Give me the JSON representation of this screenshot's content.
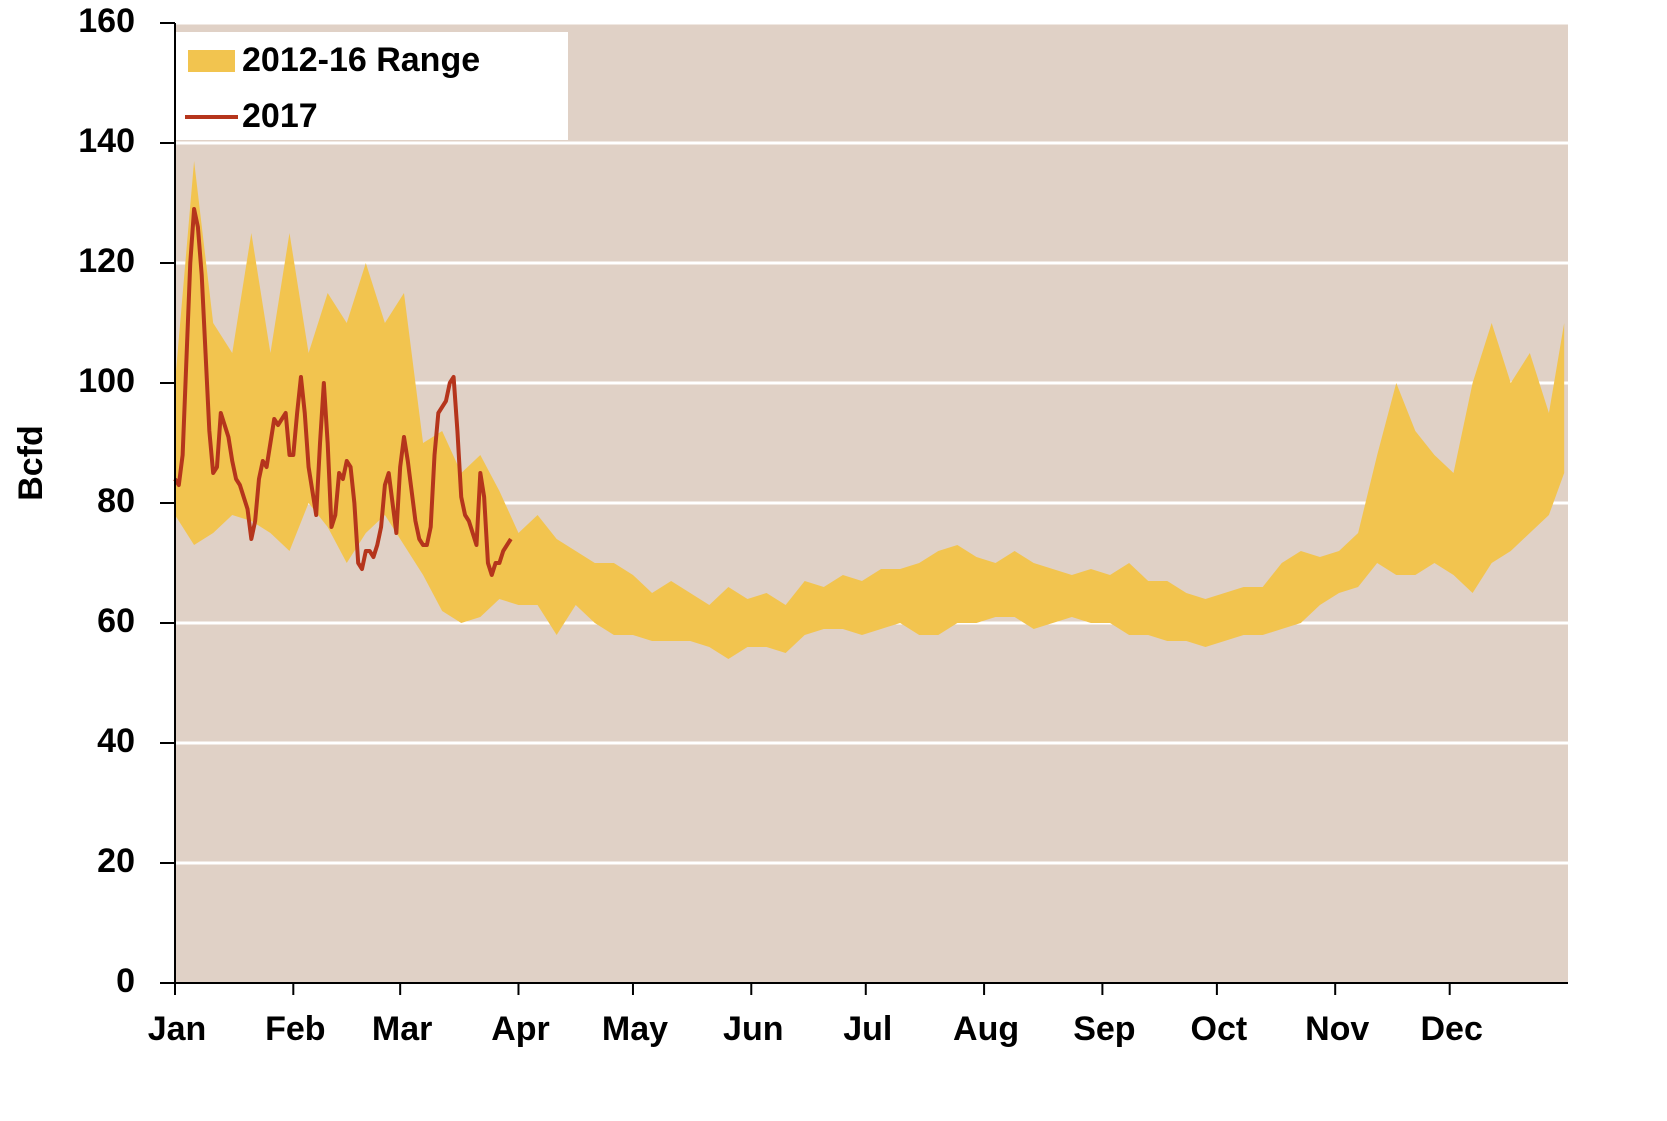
{
  "chart_data": {
    "type": "line",
    "y_label": "Bcfd",
    "xlim": [
      0,
      365
    ],
    "xticks": [
      {
        "value": 0,
        "label": "Jan"
      },
      {
        "value": 31,
        "label": "Feb"
      },
      {
        "value": 59,
        "label": "Mar"
      },
      {
        "value": 90,
        "label": "Apr"
      },
      {
        "value": 120,
        "label": "May"
      },
      {
        "value": 151,
        "label": "Jun"
      },
      {
        "value": 181,
        "label": "Jul"
      },
      {
        "value": 212,
        "label": "Aug"
      },
      {
        "value": 243,
        "label": "Sep"
      },
      {
        "value": 273,
        "label": "Oct"
      },
      {
        "value": 304,
        "label": "Nov"
      },
      {
        "value": 334,
        "label": "Dec"
      }
    ],
    "ylim": [
      0,
      160
    ],
    "yticks": [
      0,
      20,
      40,
      60,
      80,
      100,
      120,
      140,
      160
    ],
    "grid": true,
    "legend": "top-left",
    "background": "#e0d1c6",
    "series": [
      {
        "name": "2012-16 Range",
        "kind": "range",
        "color": "#f2c44f",
        "x": [
          0,
          5,
          10,
          15,
          20,
          25,
          30,
          35,
          40,
          45,
          50,
          55,
          60,
          65,
          70,
          75,
          80,
          85,
          90,
          95,
          100,
          105,
          110,
          115,
          120,
          125,
          130,
          135,
          140,
          145,
          150,
          155,
          160,
          165,
          170,
          175,
          180,
          185,
          190,
          195,
          200,
          205,
          210,
          215,
          220,
          225,
          230,
          235,
          240,
          245,
          250,
          255,
          260,
          265,
          270,
          275,
          280,
          285,
          290,
          295,
          300,
          305,
          310,
          315,
          320,
          325,
          330,
          335,
          340,
          345,
          350,
          355,
          360,
          364
        ],
        "low": [
          78,
          73,
          75,
          78,
          77,
          75,
          72,
          80,
          76,
          70,
          75,
          78,
          73,
          68,
          62,
          60,
          61,
          64,
          63,
          63,
          58,
          63,
          60,
          58,
          58,
          57,
          57,
          57,
          56,
          54,
          56,
          56,
          55,
          58,
          59,
          59,
          58,
          59,
          60,
          58,
          58,
          60,
          60,
          61,
          61,
          59,
          60,
          61,
          60,
          60,
          58,
          58,
          57,
          57,
          56,
          57,
          58,
          58,
          59,
          60,
          63,
          65,
          66,
          70,
          68,
          68,
          70,
          68,
          65,
          70,
          72,
          75,
          78,
          85
        ],
        "high": [
          100,
          137,
          110,
          105,
          125,
          105,
          125,
          105,
          115,
          110,
          120,
          110,
          115,
          90,
          92,
          85,
          88,
          82,
          75,
          78,
          74,
          72,
          70,
          70,
          68,
          65,
          67,
          65,
          63,
          66,
          64,
          65,
          63,
          67,
          66,
          68,
          67,
          69,
          69,
          70,
          72,
          73,
          71,
          70,
          72,
          70,
          69,
          68,
          69,
          68,
          70,
          67,
          67,
          65,
          64,
          65,
          66,
          66,
          70,
          72,
          71,
          72,
          75,
          88,
          100,
          92,
          88,
          85,
          100,
          110,
          100,
          105,
          95,
          110
        ]
      },
      {
        "name": "2017",
        "kind": "line",
        "color": "#b5351c",
        "x": [
          0,
          1,
          2,
          4,
          5,
          6,
          7,
          8,
          9,
          10,
          11,
          12,
          13,
          14,
          15,
          16,
          17,
          19,
          20,
          21,
          22,
          23,
          24,
          26,
          27,
          28,
          29,
          30,
          31,
          32,
          33,
          34,
          35,
          36,
          37,
          38,
          39,
          40,
          41,
          42,
          43,
          44,
          45,
          46,
          47,
          48,
          49,
          50,
          51,
          52,
          53,
          54,
          55,
          56,
          57,
          58,
          59,
          60,
          61,
          62,
          63,
          64,
          65,
          66,
          67,
          68,
          69,
          70,
          71,
          72,
          73,
          74,
          75,
          76,
          77,
          78,
          79,
          80,
          81,
          82,
          83,
          84,
          85,
          86,
          87,
          88
        ],
        "values": [
          84,
          83,
          88,
          120,
          129,
          126,
          118,
          105,
          92,
          85,
          86,
          95,
          93,
          91,
          87,
          84,
          83,
          79,
          74,
          77,
          84,
          87,
          86,
          94,
          93,
          94,
          95,
          88,
          88,
          95,
          101,
          95,
          86,
          82,
          78,
          90,
          100,
          90,
          76,
          78,
          85,
          84,
          87,
          86,
          80,
          70,
          69,
          72,
          72,
          71,
          73,
          76,
          83,
          85,
          80,
          75,
          86,
          91,
          87,
          82,
          77,
          74,
          73,
          73,
          76,
          88,
          95,
          96,
          97,
          100,
          101,
          92,
          81,
          78,
          77,
          75,
          73,
          85,
          81,
          70,
          68,
          70,
          70,
          72,
          73,
          74
        ]
      }
    ]
  }
}
